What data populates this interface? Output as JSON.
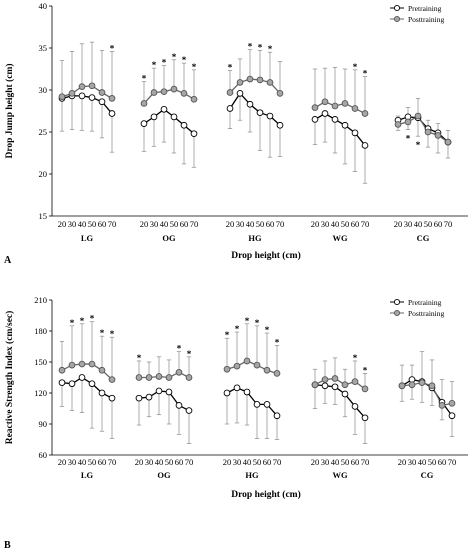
{
  "chart_data": [
    {
      "type": "line",
      "panel_label": "A",
      "ylabel": "Drop Jump height (cm)",
      "xlabel": "Drop height (cm)",
      "ylim": [
        15,
        40
      ],
      "yticks": [
        "15",
        "20",
        "25",
        "30",
        "35",
        "40"
      ],
      "x_tick_labels": [
        "20",
        "30",
        "40",
        "50",
        "60",
        "70"
      ],
      "groups": [
        "LG",
        "OG",
        "HG",
        "WG",
        "CG"
      ],
      "legend": [
        {
          "name": "Pretraining",
          "marker": "open-circle"
        },
        {
          "name": "Posttraining",
          "marker": "gray-circle"
        }
      ],
      "legend_position": "top-right",
      "grid": false,
      "series": [
        {
          "name": "Pretraining",
          "values": [
            [
              29.0,
              29.3,
              29.3,
              29.1,
              28.6,
              27.2
            ],
            [
              26.0,
              26.8,
              27.7,
              26.8,
              25.8,
              24.8
            ],
            [
              27.8,
              29.6,
              28.3,
              27.3,
              26.9,
              25.8
            ],
            [
              26.5,
              27.2,
              26.5,
              25.8,
              24.9,
              23.4
            ],
            [
              26.4,
              26.8,
              26.7,
              25.4,
              24.9,
              23.8
            ]
          ],
          "error": [
            [
              3.9,
              4.0,
              4.1,
              4.0,
              4.3,
              4.6
            ],
            [
              3.3,
              3.5,
              3.9,
              4.3,
              4.6,
              4.0
            ],
            [
              2.4,
              3.2,
              3.3,
              4.5,
              4.9,
              3.7
            ],
            [
              3.0,
              3.4,
              4.0,
              4.6,
              4.6,
              4.5
            ],
            [
              1.2,
              1.5,
              2.2,
              2.2,
              2.4,
              1.9
            ]
          ],
          "error_direction": "down"
        },
        {
          "name": "Posttraining",
          "values": [
            [
              29.2,
              29.6,
              30.4,
              30.5,
              29.7,
              29.0
            ],
            [
              28.4,
              29.7,
              29.8,
              30.1,
              29.6,
              28.9
            ],
            [
              29.7,
              30.9,
              31.3,
              31.2,
              30.9,
              29.6
            ],
            [
              27.9,
              28.6,
              28.1,
              28.4,
              27.8,
              27.2
            ],
            [
              25.9,
              26.2,
              26.9,
              25.0,
              24.6,
              23.8
            ]
          ],
          "error": [
            [
              4.3,
              5.0,
              5.1,
              5.2,
              5.0,
              5.6
            ],
            [
              2.6,
              2.9,
              3.1,
              3.5,
              3.6,
              3.5
            ],
            [
              2.6,
              2.8,
              3.5,
              3.5,
              3.6,
              3.8
            ],
            [
              4.6,
              4.0,
              4.6,
              4.1,
              4.6,
              4.4
            ],
            [
              1.0,
              1.7,
              2.1,
              1.4,
              1.4,
              1.4
            ]
          ],
          "error_direction": "up"
        }
      ],
      "significance": [
        {
          "group": 0,
          "positions": [
            5
          ],
          "place": "above"
        },
        {
          "group": 1,
          "positions": [
            0,
            1,
            2,
            3,
            4,
            5
          ],
          "place": "above"
        },
        {
          "group": 2,
          "positions": [
            0,
            2,
            3,
            4
          ],
          "place": "above"
        },
        {
          "group": 3,
          "positions": [
            4,
            5
          ],
          "place": "above"
        },
        {
          "group": 4,
          "positions": [
            1,
            2
          ],
          "place": "below"
        }
      ]
    },
    {
      "type": "line",
      "panel_label": "B",
      "ylabel": "Reactive Strength Index (cm/sec)",
      "xlabel": "Drop height (cm)",
      "ylim": [
        60,
        210
      ],
      "yticks": [
        "60",
        "90",
        "120",
        "150",
        "180",
        "210"
      ],
      "x_tick_labels": [
        "20",
        "30",
        "40",
        "50",
        "60",
        "70"
      ],
      "groups": [
        "LG",
        "OG",
        "HG",
        "WG",
        "CG"
      ],
      "legend": [
        {
          "name": "Pretraining",
          "marker": "open-circle"
        },
        {
          "name": "Posttraining",
          "marker": "gray-circle"
        }
      ],
      "legend_position": "top-right",
      "grid": false,
      "series": [
        {
          "name": "Pretraining",
          "values": [
            [
              130,
              129,
              135,
              129,
              120,
              115
            ],
            [
              115,
              116,
              122,
              121,
              108,
              103
            ],
            [
              120,
              125,
              121,
              109,
              109,
              98
            ],
            [
              128,
              127,
              126,
              119,
              107,
              96
            ],
            [
              127,
              133,
              131,
              125,
              111,
              98
            ]
          ],
          "error": [
            [
              23,
              26,
              34,
              43,
              37,
              39
            ],
            [
              26,
              19,
              23,
              31,
              28,
              32
            ],
            [
              30,
              34,
              32,
              33,
              33,
              23
            ],
            [
              23,
              17,
              17,
              22,
              27,
              25
            ],
            [
              15,
              19,
              20,
              17,
              17,
              20
            ]
          ],
          "error_direction": "down"
        },
        {
          "name": "Posttraining",
          "values": [
            [
              142,
              147,
              148,
              148,
              142,
              133
            ],
            [
              135,
              135,
              136,
              135,
              140,
              135
            ],
            [
              143,
              146,
              151,
              147,
              142,
              139
            ],
            [
              128,
              133,
              134,
              128,
              131,
              124
            ],
            [
              127,
              128,
              130,
              127,
              108,
              110
            ]
          ],
          "error": [
            [
              28,
              38,
              39,
              41,
              33,
              41
            ],
            [
              16,
              15,
              19,
              17,
              20,
              20
            ],
            [
              30,
              33,
              36,
              38,
              36,
              27
            ],
            [
              15,
              18,
              20,
              15,
              20,
              15
            ],
            [
              20,
              19,
              30,
              25,
              25,
              21
            ]
          ],
          "error_direction": "up"
        }
      ],
      "significance": [
        {
          "group": 0,
          "positions": [
            1,
            2,
            3,
            4,
            5
          ],
          "place": "above"
        },
        {
          "group": 1,
          "positions": [
            0,
            4,
            5
          ],
          "place": "above"
        },
        {
          "group": 2,
          "positions": [
            0,
            1,
            2,
            3,
            4,
            5
          ],
          "place": "above"
        },
        {
          "group": 3,
          "positions": [
            4,
            5
          ],
          "place": "above"
        }
      ]
    }
  ]
}
